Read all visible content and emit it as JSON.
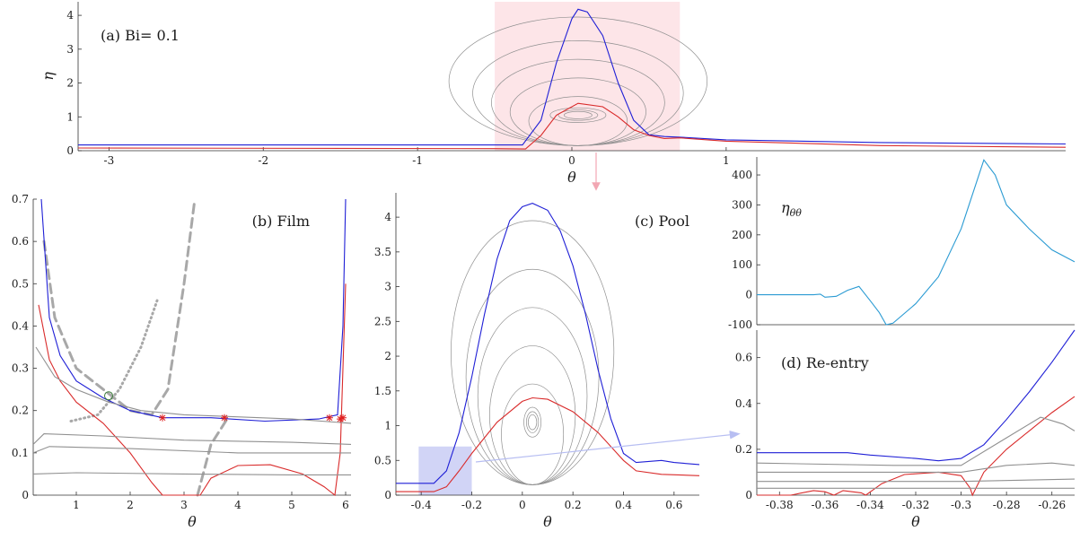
{
  "chart_data": [
    {
      "id": "a",
      "type": "line",
      "annotation": "(a) Bi= 0.1",
      "xlabel": "θ",
      "ylabel": "η",
      "xlim": [
        -3.2,
        3.2
      ],
      "ylim": [
        0,
        4.4
      ],
      "xticks": [
        -3,
        -2,
        -1,
        0,
        1
      ],
      "yticks": [
        0,
        1,
        2,
        3,
        4
      ],
      "highlight_region": {
        "x": [
          -0.5,
          0.7
        ],
        "y": [
          0,
          4.4
        ],
        "color": "#fde0e4"
      },
      "series": [
        {
          "color": "#1f1fd6",
          "points": [
            [
              -3.2,
              0.17
            ],
            [
              -0.5,
              0.17
            ],
            [
              -0.32,
              0.17
            ],
            [
              -0.2,
              0.9
            ],
            [
              -0.1,
              2.6
            ],
            [
              0,
              3.9
            ],
            [
              0.04,
              4.18
            ],
            [
              0.1,
              4.1
            ],
            [
              0.2,
              3.4
            ],
            [
              0.3,
              2.0
            ],
            [
              0.4,
              0.9
            ],
            [
              0.5,
              0.47
            ],
            [
              0.6,
              0.42
            ],
            [
              0.7,
              0.4
            ],
            [
              1.0,
              0.32
            ],
            [
              2.0,
              0.24
            ],
            [
              3.2,
              0.2
            ]
          ]
        },
        {
          "color": "#d92b2b",
          "points": [
            [
              -3.2,
              0.08
            ],
            [
              -0.5,
              0.06
            ],
            [
              -0.3,
              0.05
            ],
            [
              -0.2,
              0.45
            ],
            [
              -0.1,
              1.05
            ],
            [
              0.04,
              1.4
            ],
            [
              0.2,
              1.3
            ],
            [
              0.3,
              1.0
            ],
            [
              0.4,
              0.62
            ],
            [
              0.5,
              0.45
            ],
            [
              0.6,
              0.36
            ],
            [
              0.7,
              0.38
            ],
            [
              1.0,
              0.28
            ],
            [
              2.0,
              0.15
            ],
            [
              3.2,
              0.1
            ]
          ]
        }
      ],
      "contours": {
        "color": "#909090",
        "center": [
          0.04,
          1.05
        ],
        "levels": [
          3.95,
          3.25,
          2.7,
          2.15,
          1.6
        ]
      }
    },
    {
      "id": "b",
      "type": "line",
      "annotation": "(b) Film",
      "xlabel": "θ",
      "ylabel": "",
      "xlim": [
        0.2,
        6.1
      ],
      "ylim": [
        0,
        0.7
      ],
      "xticks": [
        1,
        2,
        3,
        4,
        5,
        6
      ],
      "yticks": [
        0,
        0.1,
        0.2,
        0.3,
        0.4,
        0.5,
        0.6,
        0.7
      ],
      "series": [
        {
          "color": "#1f1fd6",
          "points": [
            [
              0.35,
              0.7
            ],
            [
              0.5,
              0.42
            ],
            [
              0.7,
              0.33
            ],
            [
              1.0,
              0.27
            ],
            [
              1.5,
              0.23
            ],
            [
              2.0,
              0.2
            ],
            [
              2.6,
              0.183
            ],
            [
              3.0,
              0.183
            ],
            [
              3.5,
              0.183
            ],
            [
              4.5,
              0.175
            ],
            [
              5.5,
              0.18
            ],
            [
              5.85,
              0.19
            ],
            [
              5.95,
              0.4
            ],
            [
              6.0,
              0.7
            ]
          ]
        },
        {
          "color": "#d92b2b",
          "points": [
            [
              0.3,
              0.45
            ],
            [
              0.5,
              0.32
            ],
            [
              0.7,
              0.27
            ],
            [
              1.0,
              0.22
            ],
            [
              1.5,
              0.17
            ],
            [
              2.0,
              0.1
            ],
            [
              2.4,
              0.03
            ],
            [
              2.6,
              0
            ],
            [
              3.3,
              0
            ],
            [
              3.5,
              0.04
            ],
            [
              4.0,
              0.07
            ],
            [
              4.6,
              0.072
            ],
            [
              5.2,
              0.05
            ],
            [
              5.6,
              0.02
            ],
            [
              5.8,
              0
            ],
            [
              5.9,
              0.1
            ],
            [
              6.0,
              0.5
            ]
          ]
        },
        {
          "color": "#909090",
          "points": [
            [
              0.2,
              0.05
            ],
            [
              1.0,
              0.053
            ],
            [
              3.0,
              0.05
            ],
            [
              5.0,
              0.048
            ],
            [
              6.1,
              0.048
            ]
          ]
        },
        {
          "color": "#909090",
          "points": [
            [
              0.2,
              0.1
            ],
            [
              0.5,
              0.115
            ],
            [
              2.0,
              0.11
            ],
            [
              4.0,
              0.1
            ],
            [
              6.1,
              0.1
            ]
          ]
        },
        {
          "color": "#909090",
          "points": [
            [
              0.2,
              0.12
            ],
            [
              0.4,
              0.145
            ],
            [
              1.5,
              0.14
            ],
            [
              3.0,
              0.13
            ],
            [
              5.0,
              0.125
            ],
            [
              6.1,
              0.12
            ]
          ]
        },
        {
          "color": "#909090",
          "points": [
            [
              0.25,
              0.35
            ],
            [
              0.6,
              0.28
            ],
            [
              1.0,
              0.25
            ],
            [
              1.6,
              0.22
            ],
            [
              2.2,
              0.2
            ],
            [
              3.0,
              0.19
            ],
            [
              5.0,
              0.18
            ],
            [
              6.1,
              0.17
            ]
          ]
        }
      ],
      "dashed_curves": [
        {
          "color": "#a8a8a8",
          "style": "dash",
          "points": [
            [
              0.4,
              0.6
            ],
            [
              0.6,
              0.42
            ],
            [
              1.0,
              0.3
            ],
            [
              1.5,
              0.25
            ],
            [
              2.0,
              0.2
            ],
            [
              2.4,
              0.19
            ],
            [
              2.7,
              0.25
            ],
            [
              3.0,
              0.5
            ],
            [
              3.2,
              0.7
            ]
          ]
        },
        {
          "color": "#a8a8a8",
          "style": "dash",
          "points": [
            [
              3.25,
              0
            ],
            [
              3.5,
              0.12
            ],
            [
              3.8,
              0.18
            ]
          ]
        },
        {
          "color": "#a8a8a8",
          "style": "dot",
          "points": [
            [
              0.9,
              0.175
            ],
            [
              1.4,
              0.19
            ],
            [
              1.8,
              0.25
            ],
            [
              2.2,
              0.35
            ],
            [
              2.5,
              0.46
            ]
          ]
        }
      ],
      "markers": [
        [
          2.6,
          0.183
        ],
        [
          3.75,
          0.183
        ],
        [
          5.7,
          0.183
        ],
        [
          5.9,
          0.18
        ],
        [
          5.95,
          0.183
        ]
      ],
      "circle_marker": [
        1.6,
        0.235
      ]
    },
    {
      "id": "c",
      "type": "line",
      "annotation": "(c) Pool",
      "xlabel": "θ",
      "ylabel": "",
      "xlim": [
        -0.5,
        0.7
      ],
      "ylim": [
        0,
        4.35
      ],
      "xticks": [
        -0.4,
        -0.2,
        0,
        0.2,
        0.4,
        0.6
      ],
      "yticks": [
        0,
        0.5,
        1,
        1.5,
        2,
        2.5,
        3,
        3.5,
        4
      ],
      "highlight_region": {
        "x": [
          -0.41,
          -0.2
        ],
        "y": [
          0,
          0.7
        ],
        "color": "#c9cdf5"
      },
      "series": [
        {
          "color": "#1f1fd6",
          "points": [
            [
              -0.5,
              0.17
            ],
            [
              -0.35,
              0.17
            ],
            [
              -0.3,
              0.35
            ],
            [
              -0.25,
              0.9
            ],
            [
              -0.2,
              1.7
            ],
            [
              -0.15,
              2.6
            ],
            [
              -0.1,
              3.4
            ],
            [
              -0.05,
              3.95
            ],
            [
              0,
              4.15
            ],
            [
              0.04,
              4.2
            ],
            [
              0.1,
              4.1
            ],
            [
              0.15,
              3.8
            ],
            [
              0.2,
              3.3
            ],
            [
              0.25,
              2.6
            ],
            [
              0.3,
              1.8
            ],
            [
              0.35,
              1.1
            ],
            [
              0.4,
              0.6
            ],
            [
              0.45,
              0.47
            ],
            [
              0.55,
              0.5
            ],
            [
              0.6,
              0.47
            ],
            [
              0.7,
              0.44
            ]
          ]
        },
        {
          "color": "#d92b2b",
          "points": [
            [
              -0.5,
              0.05
            ],
            [
              -0.35,
              0.05
            ],
            [
              -0.3,
              0.12
            ],
            [
              -0.25,
              0.35
            ],
            [
              -0.2,
              0.6
            ],
            [
              -0.1,
              1.05
            ],
            [
              0,
              1.35
            ],
            [
              0.04,
              1.4
            ],
            [
              0.1,
              1.38
            ],
            [
              0.2,
              1.2
            ],
            [
              0.3,
              0.9
            ],
            [
              0.4,
              0.5
            ],
            [
              0.45,
              0.35
            ],
            [
              0.55,
              0.3
            ],
            [
              0.7,
              0.28
            ]
          ]
        }
      ],
      "contours": {
        "color": "#909090",
        "center": [
          0.04,
          1.05
        ],
        "levels": [
          3.95,
          3.25,
          2.7,
          2.15,
          1.6
        ]
      }
    },
    {
      "id": "d_top",
      "type": "line",
      "annotation": "ηθθ",
      "annotation_main": "η",
      "annotation_sub": "θθ",
      "xlabel": "",
      "ylabel": "",
      "xlim": [
        -0.39,
        -0.25
      ],
      "ylim": [
        -100,
        460
      ],
      "yticks": [
        -100,
        0,
        100,
        200,
        300,
        400
      ],
      "series": [
        {
          "color": "#2b9bd3",
          "points": [
            [
              -0.39,
              0
            ],
            [
              -0.365,
              0
            ],
            [
              -0.362,
              2
            ],
            [
              -0.36,
              -8
            ],
            [
              -0.355,
              -5
            ],
            [
              -0.35,
              15
            ],
            [
              -0.345,
              28
            ],
            [
              -0.34,
              -20
            ],
            [
              -0.336,
              -60
            ],
            [
              -0.333,
              -100
            ],
            [
              -0.33,
              -95
            ],
            [
              -0.32,
              -30
            ],
            [
              -0.31,
              60
            ],
            [
              -0.3,
              220
            ],
            [
              -0.29,
              450
            ],
            [
              -0.285,
              400
            ],
            [
              -0.28,
              300
            ],
            [
              -0.27,
              220
            ],
            [
              -0.26,
              150
            ],
            [
              -0.25,
              110
            ]
          ]
        }
      ]
    },
    {
      "id": "d",
      "type": "line",
      "annotation": "(d) Re-entry",
      "xlabel": "θ",
      "ylabel": "",
      "xlim": [
        -0.39,
        -0.25
      ],
      "ylim": [
        0,
        0.72
      ],
      "xticks": [
        -0.38,
        -0.36,
        -0.34,
        -0.32,
        -0.3,
        -0.28,
        -0.26
      ],
      "yticks": [
        0,
        0.2,
        0.4,
        0.6
      ],
      "series": [
        {
          "color": "#1f1fd6",
          "points": [
            [
              -0.39,
              0.185
            ],
            [
              -0.35,
              0.185
            ],
            [
              -0.34,
              0.175
            ],
            [
              -0.32,
              0.16
            ],
            [
              -0.31,
              0.15
            ],
            [
              -0.3,
              0.16
            ],
            [
              -0.29,
              0.22
            ],
            [
              -0.28,
              0.33
            ],
            [
              -0.27,
              0.45
            ],
            [
              -0.26,
              0.58
            ],
            [
              -0.25,
              0.72
            ]
          ]
        },
        {
          "color": "#d92b2b",
          "points": [
            [
              -0.39,
              0
            ],
            [
              -0.375,
              0
            ],
            [
              -0.365,
              0.02
            ],
            [
              -0.36,
              0.015
            ],
            [
              -0.356,
              0
            ],
            [
              -0.352,
              0.02
            ],
            [
              -0.344,
              0.01
            ],
            [
              -0.342,
              0
            ],
            [
              -0.335,
              0.05
            ],
            [
              -0.325,
              0.09
            ],
            [
              -0.31,
              0.1
            ],
            [
              -0.3,
              0.085
            ],
            [
              -0.296,
              0.03
            ],
            [
              -0.295,
              0
            ],
            [
              -0.29,
              0.1
            ],
            [
              -0.28,
              0.2
            ],
            [
              -0.27,
              0.28
            ],
            [
              -0.26,
              0.36
            ],
            [
              -0.25,
              0.43
            ]
          ]
        },
        {
          "color": "#909090",
          "points": [
            [
              -0.39,
              0.14
            ],
            [
              -0.33,
              0.13
            ],
            [
              -0.3,
              0.13
            ],
            [
              -0.28,
              0.25
            ],
            [
              -0.265,
              0.34
            ],
            [
              -0.255,
              0.31
            ],
            [
              -0.25,
              0.28
            ]
          ]
        },
        {
          "color": "#909090",
          "points": [
            [
              -0.39,
              0.1
            ],
            [
              -0.33,
              0.1
            ],
            [
              -0.3,
              0.1
            ],
            [
              -0.28,
              0.13
            ],
            [
              -0.26,
              0.14
            ],
            [
              -0.25,
              0.13
            ]
          ]
        },
        {
          "color": "#909090",
          "points": [
            [
              -0.39,
              0.06
            ],
            [
              -0.3,
              0.06
            ],
            [
              -0.25,
              0.07
            ]
          ]
        },
        {
          "color": "#909090",
          "points": [
            [
              -0.39,
              0.03
            ],
            [
              -0.25,
              0.03
            ]
          ]
        }
      ]
    }
  ]
}
